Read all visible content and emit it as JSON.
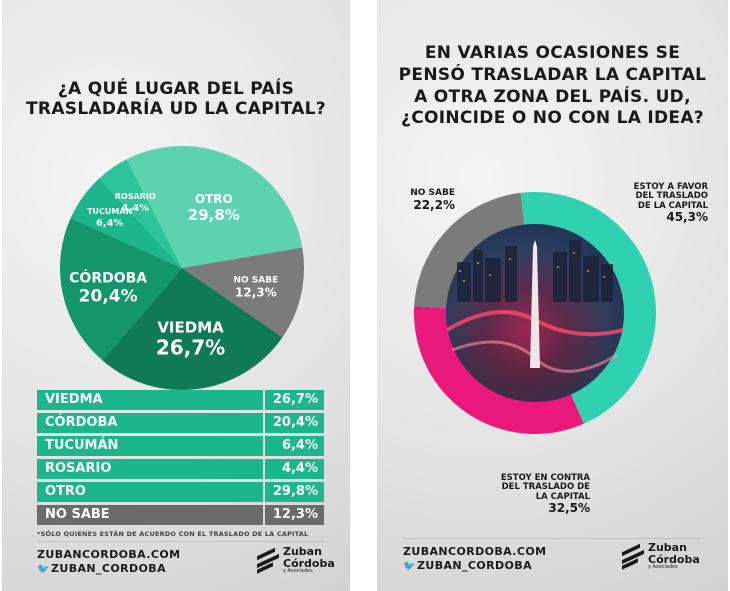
{
  "left": {
    "title_line1": "¿A QUÉ LUGAR DEL PAÍS",
    "title_line2": "TRASLADARÍA UD LA CAPITAL?",
    "table": [
      {
        "label": "VIEDMA",
        "value": "26,7%"
      },
      {
        "label": "CÓRDOBA",
        "value": "20,4%"
      },
      {
        "label": "TUCUMÁN",
        "value": "6,4%"
      },
      {
        "label": "ROSARIO",
        "value": "4,4%"
      },
      {
        "label": "OTRO",
        "value": "29,8%"
      },
      {
        "label": "NO SABE",
        "value": "12,3%"
      }
    ],
    "footnote": "*SÓLO QUIENES ESTÁN DE ACUERDO CON EL TRASLADO DE LA CAPITAL",
    "website": "ZUBANCORDOBA.COM",
    "twitter": "ZUBAN_CORDOBA"
  },
  "right": {
    "title_line1": "EN VARIAS OCASIONES SE",
    "title_line2": "PENSÓ TRASLADAR LA CAPITAL",
    "title_line3": "A OTRA ZONA DEL PAÍS. UD,",
    "title_line4": "¿COINCIDE O NO CON LA IDEA?",
    "website": "ZUBANCORDOBA.COM",
    "twitter": "ZUBAN_CORDOBA"
  },
  "brand": {
    "name_line1": "Zuban",
    "name_line2": "Córdoba",
    "sub": "y Asociados"
  },
  "colors": {
    "green_dark": "#0f7a55",
    "green_mid": "#1bb78a",
    "green_light": "#5cd3ad",
    "teal": "#2fd1b0",
    "gray": "#7b7b7b",
    "magenta": "#e8197a",
    "dark_gray": "#6b6b6b"
  },
  "chart_data": [
    {
      "type": "pie",
      "title": "¿A QUÉ LUGAR DEL PAÍS TRASLADARÍA UD LA CAPITAL?",
      "categories": [
        "OTRO",
        "NO SABE",
        "VIEDMA",
        "CÓRDOBA",
        "TUCUMÁN",
        "ROSARIO"
      ],
      "values": [
        29.8,
        12.3,
        26.7,
        20.4,
        6.4,
        4.4
      ],
      "labels": [
        "29,8%",
        "12,3%",
        "26,7%",
        "20,4%",
        "6,4%",
        "4,4%"
      ],
      "colors": [
        "#5cd3ad",
        "#7b7b7b",
        "#0f7a55",
        "#13966a",
        "#1bb78a",
        "#2cc498"
      ]
    },
    {
      "type": "pie",
      "title": "EN VARIAS OCASIONES SE PENSÓ TRASLADAR LA CAPITAL A OTRA ZONA DEL PAÍS. UD, ¿COINCIDE O NO CON LA IDEA?",
      "categories_lines": [
        [
          "ESTOY A FAVOR",
          "DEL TRASLADO",
          "DE LA CAPITAL"
        ],
        [
          "ESTOY EN CONTRA",
          "DEL TRASLADO DE",
          "LA CAPITAL"
        ],
        [
          "NO SABE"
        ]
      ],
      "values": [
        45.3,
        32.5,
        22.2
      ],
      "labels": [
        "45,3%",
        "32,5%",
        "22,2%"
      ],
      "colors": [
        "#2fd1b0",
        "#e8197a",
        "#7b7b7b"
      ]
    }
  ]
}
